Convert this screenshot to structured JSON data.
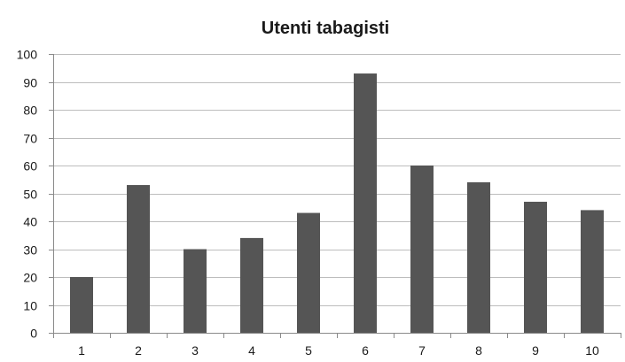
{
  "chart_data": {
    "type": "bar",
    "title": "Utenti tabagisti",
    "xlabel": "",
    "ylabel": "",
    "categories": [
      "1",
      "2",
      "3",
      "4",
      "5",
      "6",
      "7",
      "8",
      "9",
      "10"
    ],
    "values": [
      20,
      53,
      30,
      34,
      43,
      93,
      60,
      54,
      47,
      44
    ],
    "ylim": [
      0,
      100
    ],
    "yticks": [
      "0",
      "10",
      "20",
      "30",
      "40",
      "50",
      "60",
      "70",
      "80",
      "90",
      "100"
    ],
    "grid": true,
    "legend": "none",
    "colors": {
      "bar": "#555555",
      "grid": "#bdbdbd",
      "axis": "#8a8a8a"
    }
  }
}
